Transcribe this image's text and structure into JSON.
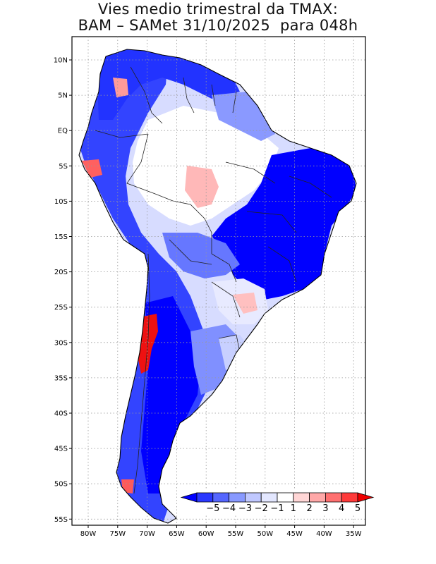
{
  "title": {
    "line1": "Vies medio trimestral da TMAX:",
    "line2": "BAM – SAMet 31/10/2025  para 048h"
  },
  "axes": {
    "lon_labels": [
      "80W",
      "75W",
      "70W",
      "65W",
      "60W",
      "55W",
      "50W",
      "45W",
      "40W",
      "35W"
    ],
    "lat_labels": [
      "10N",
      "5N",
      "EQ",
      "5S",
      "10S",
      "15S",
      "20S",
      "25S",
      "30S",
      "35S",
      "40S",
      "45S",
      "50S",
      "55S"
    ]
  },
  "colorbar": {
    "labels": [
      "−5",
      "−4",
      "−3",
      "−2",
      "−1",
      "1",
      "2",
      "3",
      "4",
      "5"
    ],
    "colors": [
      "#0000ff",
      "#2a38ff",
      "#5566ff",
      "#8899ff",
      "#c0c8ff",
      "#e3e7ff",
      "#ffffff",
      "#ffd6d6",
      "#ffa8a8",
      "#ff7070",
      "#ff3a3a",
      "#ee0000"
    ]
  },
  "legend_colors": {
    "strong_cold": "#0000ff",
    "moderate_cold": "#4455ff",
    "weak_cold": "#8899ff",
    "very_weak_cold": "#c8d0ff",
    "neutral": "#ffffff",
    "weak_warm": "#ffb0b0",
    "strong_warm": "#ee1111"
  }
}
